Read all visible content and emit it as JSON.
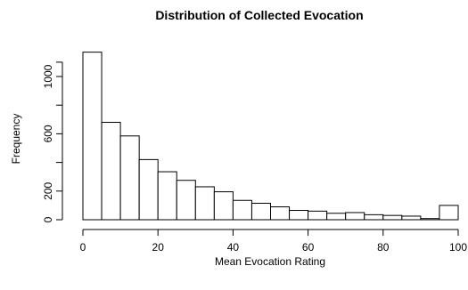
{
  "chart_data": {
    "type": "histogram",
    "title": "Distribution of Collected Evocation",
    "xlabel": "Mean Evocation Rating",
    "ylabel": "Frequency",
    "xlim": [
      0,
      100
    ],
    "ylim": [
      0,
      1200
    ],
    "grid": false,
    "legend": "none",
    "bar_fill": "#ffffff",
    "bar_stroke": "#000000",
    "bin_width": 5,
    "bins": [
      {
        "x0": 0,
        "x1": 5,
        "count": 1170
      },
      {
        "x0": 5,
        "x1": 10,
        "count": 680
      },
      {
        "x0": 10,
        "x1": 15,
        "count": 585
      },
      {
        "x0": 15,
        "x1": 20,
        "count": 420
      },
      {
        "x0": 20,
        "x1": 25,
        "count": 335
      },
      {
        "x0": 25,
        "x1": 30,
        "count": 275
      },
      {
        "x0": 30,
        "x1": 35,
        "count": 230
      },
      {
        "x0": 35,
        "x1": 40,
        "count": 195
      },
      {
        "x0": 40,
        "x1": 45,
        "count": 135
      },
      {
        "x0": 45,
        "x1": 50,
        "count": 115
      },
      {
        "x0": 50,
        "x1": 55,
        "count": 90
      },
      {
        "x0": 55,
        "x1": 60,
        "count": 65
      },
      {
        "x0": 60,
        "x1": 65,
        "count": 60
      },
      {
        "x0": 65,
        "x1": 70,
        "count": 45
      },
      {
        "x0": 70,
        "x1": 75,
        "count": 50
      },
      {
        "x0": 75,
        "x1": 80,
        "count": 35
      },
      {
        "x0": 80,
        "x1": 85,
        "count": 30
      },
      {
        "x0": 85,
        "x1": 90,
        "count": 25
      },
      {
        "x0": 90,
        "x1": 95,
        "count": 8
      },
      {
        "x0": 95,
        "x1": 100,
        "count": 100
      }
    ],
    "x_ticks": [
      0,
      20,
      40,
      60,
      80,
      100
    ],
    "x_tick_labels": [
      "0",
      "20",
      "40",
      "60",
      "80",
      "100"
    ],
    "y_ticks": [
      0,
      200,
      600,
      1000
    ],
    "y_tick_labels": [
      "0",
      "200",
      "600",
      "1000"
    ]
  }
}
